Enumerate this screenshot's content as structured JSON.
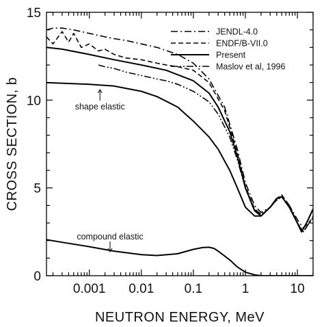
{
  "chart_data": {
    "type": "line",
    "title": "",
    "xlabel": "NEUTRON ENERGY,  MeV",
    "ylabel": "CROSS SECTION,  b",
    "xscale": "log",
    "xlim": [
      0.00015,
      20
    ],
    "ylim": [
      0,
      15
    ],
    "grid": false,
    "legend_position": "top-right",
    "x_ticks": [
      0.001,
      0.01,
      0.1,
      1,
      10
    ],
    "x_tick_labels": [
      "0.001",
      "0.01",
      "0.1",
      "1",
      "10"
    ],
    "y_ticks": [
      0,
      5,
      10,
      15
    ],
    "y_tick_labels": [
      "0",
      "5",
      "10",
      "15"
    ],
    "series": [
      {
        "name": "JENDL-4.0",
        "style": "dashdot",
        "x": [
          0.00015,
          0.0002,
          0.0003,
          0.0005,
          0.001,
          0.002,
          0.003,
          0.005,
          0.01,
          0.02,
          0.05,
          0.1,
          0.2,
          0.4,
          0.7,
          1.0,
          1.5,
          2.0,
          3.0,
          4.0,
          5.0,
          7.0,
          10.0,
          13.0,
          16.0,
          20.0
        ],
        "y": [
          14.0,
          14.1,
          14.1,
          14.0,
          13.8,
          13.6,
          13.5,
          13.4,
          13.2,
          13.0,
          12.6,
          12.1,
          11.2,
          9.6,
          7.2,
          5.3,
          4.0,
          3.6,
          3.9,
          4.3,
          4.5,
          4.0,
          3.2,
          2.7,
          3.0,
          3.3
        ]
      },
      {
        "name": "ENDF/B-VII.0",
        "style": "dashed",
        "x": [
          0.00015,
          0.0002,
          0.0003,
          0.0004,
          0.0005,
          0.0007,
          0.001,
          0.0015,
          0.002,
          0.003,
          0.005,
          0.01,
          0.02,
          0.03,
          0.05,
          0.1,
          0.2,
          0.4,
          0.7,
          1.0,
          1.5,
          2.0,
          3.0,
          4.0,
          5.0,
          7.0,
          10.0,
          13.0,
          16.0,
          20.0
        ],
        "y": [
          13.6,
          13.2,
          13.9,
          13.3,
          13.8,
          13.0,
          13.2,
          12.8,
          12.9,
          12.6,
          12.4,
          12.3,
          12.1,
          12.0,
          11.9,
          11.7,
          11.0,
          9.4,
          7.0,
          5.1,
          3.8,
          3.4,
          3.9,
          4.4,
          4.6,
          4.0,
          3.0,
          2.5,
          2.9,
          3.4
        ]
      },
      {
        "name": "Present",
        "style": "solid",
        "x": [
          0.00015,
          0.0003,
          0.001,
          0.003,
          0.01,
          0.03,
          0.1,
          0.2,
          0.3,
          0.5,
          0.7,
          1.0,
          1.5,
          2.0,
          3.0,
          4.0,
          5.0,
          7.0,
          10.0,
          12.0,
          15.0,
          20.0
        ],
        "y": [
          13.0,
          12.9,
          12.6,
          12.3,
          12.0,
          11.7,
          11.1,
          10.4,
          9.6,
          8.2,
          6.8,
          5.0,
          3.7,
          3.4,
          3.9,
          4.4,
          4.5,
          3.9,
          3.0,
          2.5,
          3.0,
          3.8
        ]
      },
      {
        "name": "Maslov et al, 1996",
        "style": "dashdotdot",
        "x": [
          0.0015,
          0.002,
          0.003,
          0.005,
          0.01,
          0.02,
          0.03,
          0.05,
          0.1,
          0.2,
          0.3,
          0.5,
          0.7,
          1.0,
          1.5,
          2.0,
          3.0,
          4.0,
          5.0,
          7.0,
          10.0,
          13.0,
          16.0,
          20.0
        ],
        "y": [
          12.0,
          11.9,
          11.8,
          11.6,
          11.4,
          11.2,
          11.1,
          10.9,
          10.5,
          9.9,
          9.2,
          7.9,
          6.6,
          5.0,
          3.8,
          3.5,
          3.9,
          4.3,
          4.5,
          3.9,
          3.0,
          2.5,
          2.9,
          3.3
        ]
      },
      {
        "name": "shape elastic",
        "style": "solid",
        "x": [
          0.00015,
          0.001,
          0.003,
          0.01,
          0.02,
          0.05,
          0.1,
          0.2,
          0.3,
          0.5,
          0.7,
          1.0,
          1.5,
          2.0,
          3.0,
          4.0,
          5.0,
          7.0,
          10.0,
          12.0,
          15.0,
          20.0
        ],
        "y": [
          11.0,
          10.9,
          10.8,
          10.5,
          10.2,
          9.6,
          8.8,
          7.9,
          7.2,
          6.0,
          5.0,
          3.9,
          3.4,
          3.4,
          3.9,
          4.4,
          4.5,
          3.9,
          3.0,
          2.5,
          3.0,
          3.8
        ]
      },
      {
        "name": "compound elastic",
        "style": "solid",
        "x": [
          0.00015,
          0.0003,
          0.001,
          0.003,
          0.01,
          0.02,
          0.05,
          0.1,
          0.15,
          0.2,
          0.25,
          0.3,
          0.5,
          0.7,
          1.0,
          1.5,
          2.0,
          3.0,
          5.0,
          20.0
        ],
        "y": [
          2.05,
          1.9,
          1.65,
          1.4,
          1.2,
          1.15,
          1.25,
          1.5,
          1.6,
          1.62,
          1.55,
          1.4,
          0.9,
          0.5,
          0.2,
          0.05,
          0.0,
          0.0,
          0.0,
          0.0
        ]
      }
    ],
    "annotations": [
      "shape elastic",
      "compound elastic"
    ]
  }
}
